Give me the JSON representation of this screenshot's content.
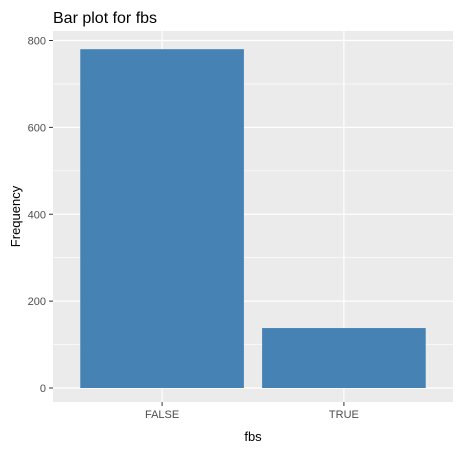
{
  "chart_data": {
    "type": "bar",
    "title": "Bar plot for fbs",
    "xlabel": "fbs",
    "ylabel": "Frequency",
    "categories": [
      "FALSE",
      "TRUE"
    ],
    "values": [
      780,
      138
    ],
    "ylim": [
      0,
      820
    ],
    "yticks": [
      0,
      200,
      400,
      600,
      800
    ],
    "grid": true,
    "legend": "none",
    "bar_color": "#4682B4",
    "panel_color": "#EBEBEB",
    "grid_color": "#FFFFFF"
  }
}
